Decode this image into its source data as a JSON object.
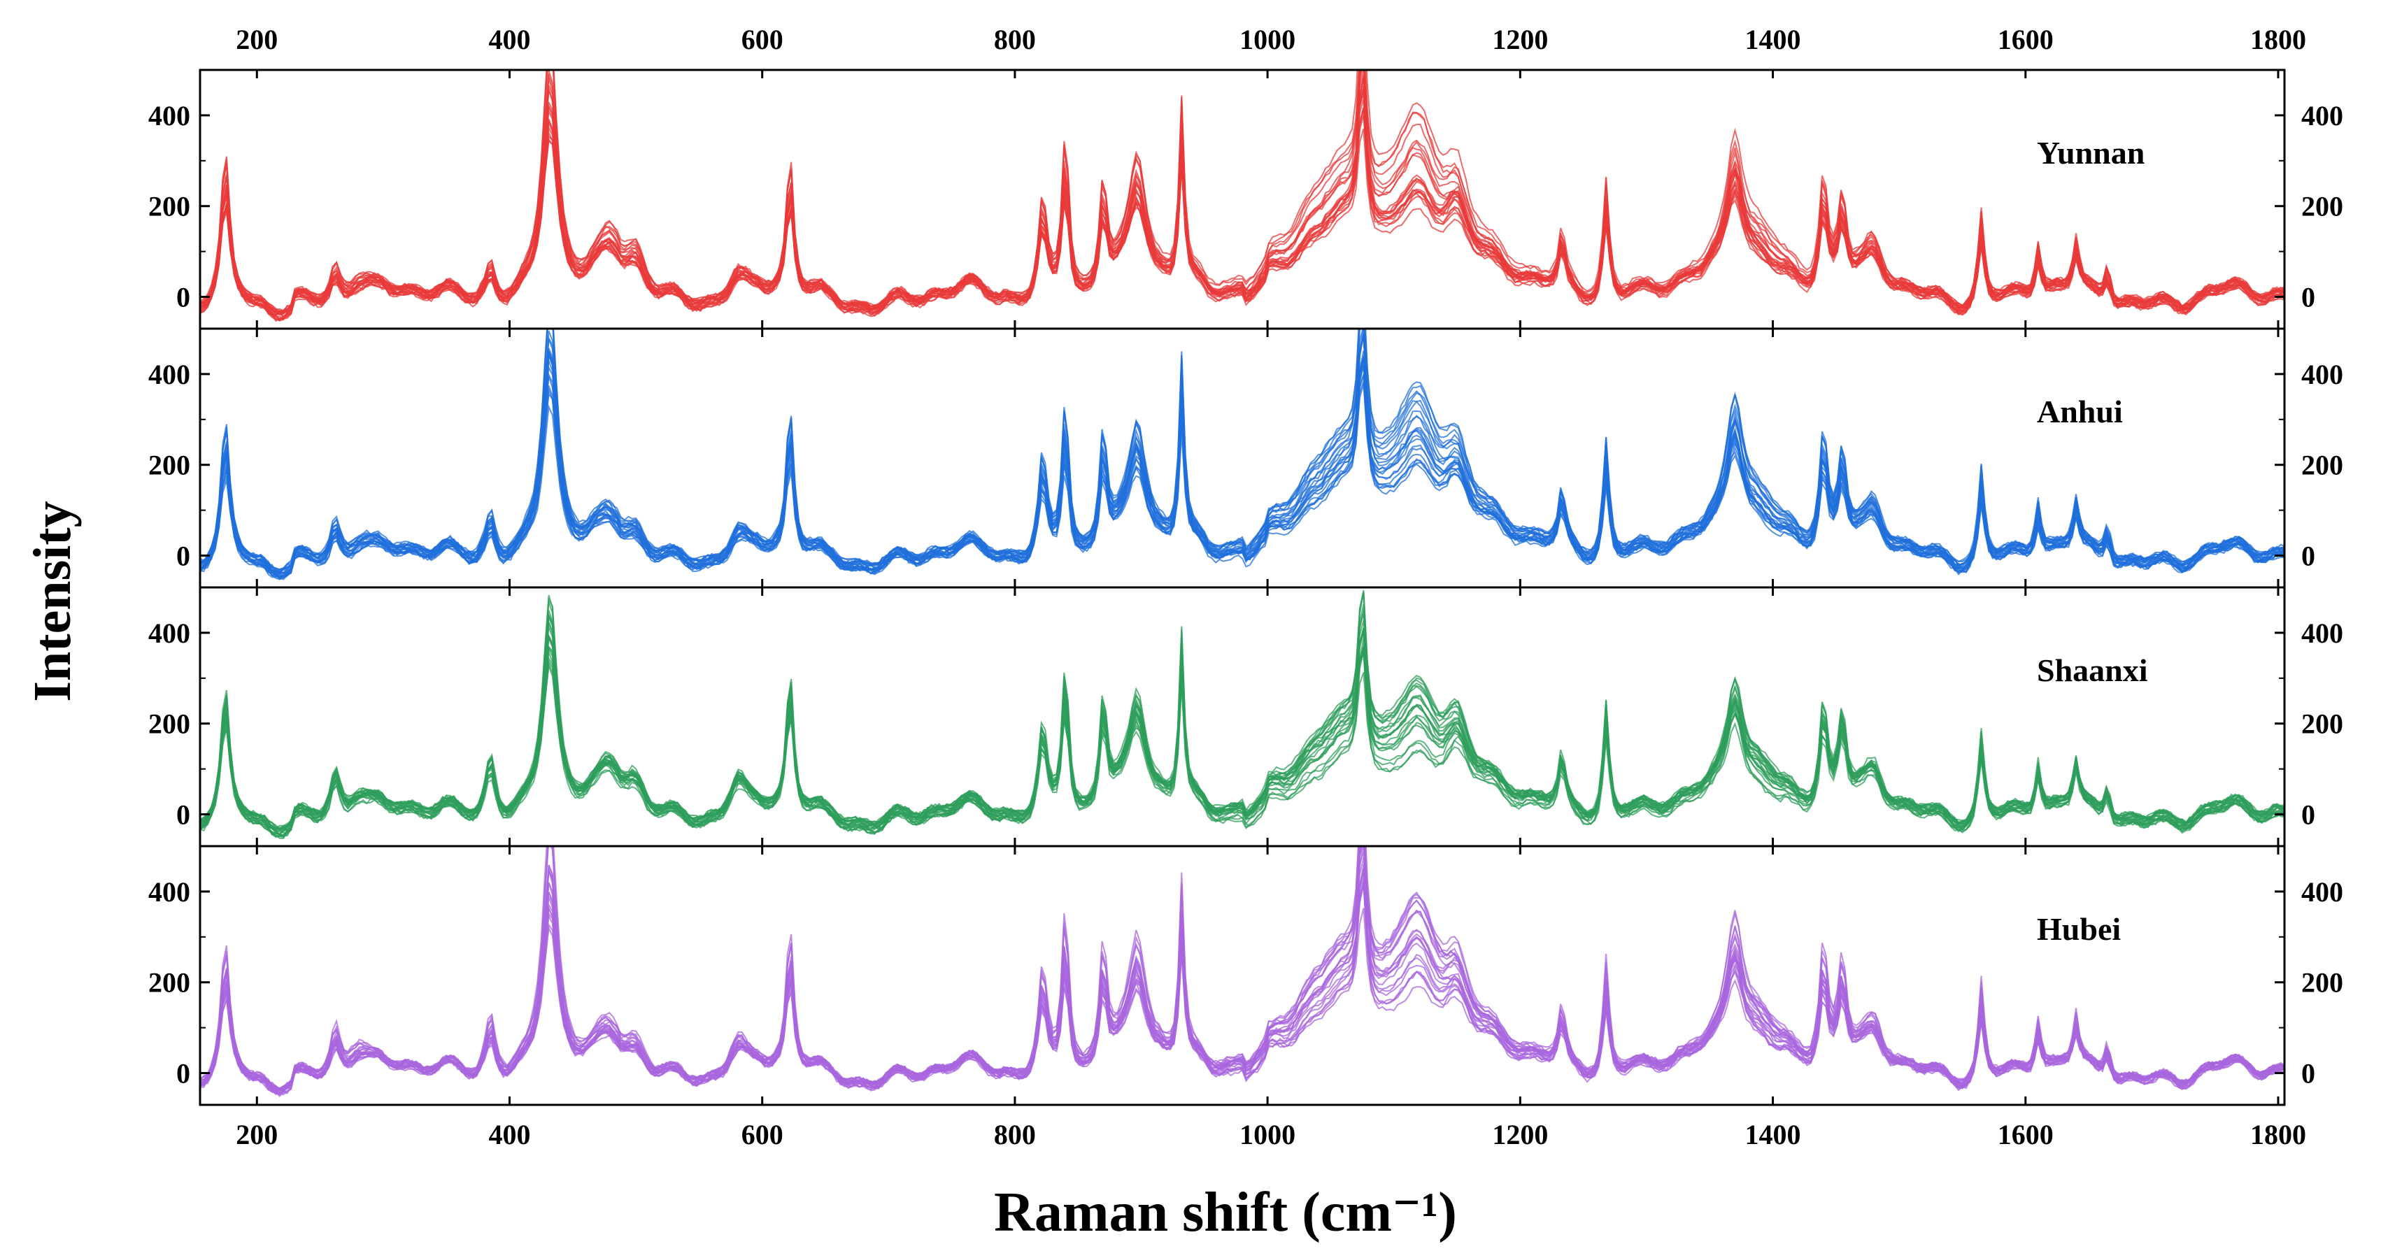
{
  "chart_data": {
    "type": "line",
    "xlabel": "Raman shift (cm⁻¹)",
    "ylabel": "Intensity",
    "xlim": [
      155,
      1805
    ],
    "ylim": [
      -70,
      500
    ],
    "x_ticks": [
      200,
      400,
      600,
      800,
      1000,
      1200,
      1400,
      1600,
      1800
    ],
    "y_ticks": [
      0,
      200,
      400
    ],
    "grid": false,
    "panels": [
      {
        "name": "Yunnan",
        "color": "#e83a3a",
        "peaks": [
          [
            175,
            250,
            4
          ],
          [
            262,
            60,
            5
          ],
          [
            280,
            45,
            10
          ],
          [
            385,
            70,
            5
          ],
          [
            432,
            470,
            7
          ],
          [
            480,
            85,
            12
          ],
          [
            500,
            75,
            10
          ],
          [
            580,
            45,
            8
          ],
          [
            622,
            240,
            3.5
          ],
          [
            822,
            170,
            4
          ],
          [
            840,
            300,
            3.5
          ],
          [
            870,
            195,
            3.5
          ],
          [
            897,
            230,
            9
          ],
          [
            932,
            320,
            2.5
          ],
          [
            1050,
            150,
            40
          ],
          [
            1075,
            350,
            4
          ],
          [
            1118,
            250,
            28
          ],
          [
            1150,
            120,
            12
          ],
          [
            1233,
            90,
            3
          ],
          [
            1268,
            210,
            3
          ],
          [
            1370,
            230,
            8
          ],
          [
            1390,
            110,
            25
          ],
          [
            1440,
            200,
            4
          ],
          [
            1455,
            150,
            4
          ],
          [
            1480,
            80,
            10
          ],
          [
            1565,
            160,
            3
          ],
          [
            1610,
            100,
            3
          ],
          [
            1640,
            90,
            3
          ],
          [
            1665,
            70,
            3
          ]
        ]
      },
      {
        "name": "Anhui",
        "color": "#1f6fdb",
        "peaks": [
          [
            175,
            235,
            4
          ],
          [
            262,
            70,
            5
          ],
          [
            280,
            40,
            10
          ],
          [
            385,
            85,
            5
          ],
          [
            432,
            470,
            7
          ],
          [
            480,
            55,
            12
          ],
          [
            500,
            45,
            10
          ],
          [
            580,
            45,
            8
          ],
          [
            622,
            260,
            3.5
          ],
          [
            822,
            175,
            4
          ],
          [
            840,
            290,
            3.5
          ],
          [
            870,
            215,
            3.5
          ],
          [
            897,
            220,
            9
          ],
          [
            932,
            330,
            2.5
          ],
          [
            1050,
            130,
            40
          ],
          [
            1075,
            330,
            4
          ],
          [
            1118,
            230,
            28
          ],
          [
            1150,
            110,
            12
          ],
          [
            1233,
            95,
            3
          ],
          [
            1268,
            215,
            3
          ],
          [
            1370,
            240,
            8
          ],
          [
            1390,
            100,
            25
          ],
          [
            1440,
            210,
            4
          ],
          [
            1455,
            160,
            4
          ],
          [
            1480,
            75,
            10
          ],
          [
            1565,
            170,
            3
          ],
          [
            1610,
            100,
            3
          ],
          [
            1640,
            90,
            3
          ],
          [
            1665,
            70,
            3
          ]
        ]
      },
      {
        "name": "Shaanxi",
        "color": "#2e9e5b",
        "peaks": [
          [
            175,
            225,
            4
          ],
          [
            262,
            90,
            5
          ],
          [
            280,
            50,
            10
          ],
          [
            385,
            120,
            5
          ],
          [
            432,
            400,
            7
          ],
          [
            480,
            70,
            12
          ],
          [
            500,
            60,
            10
          ],
          [
            580,
            70,
            8
          ],
          [
            622,
            250,
            3.5
          ],
          [
            822,
            160,
            4
          ],
          [
            840,
            280,
            3.5
          ],
          [
            870,
            205,
            3.5
          ],
          [
            897,
            200,
            9
          ],
          [
            932,
            300,
            2.5
          ],
          [
            1050,
            110,
            40
          ],
          [
            1075,
            280,
            4
          ],
          [
            1118,
            180,
            28
          ],
          [
            1150,
            110,
            12
          ],
          [
            1233,
            90,
            3
          ],
          [
            1268,
            210,
            3
          ],
          [
            1370,
            200,
            8
          ],
          [
            1390,
            90,
            25
          ],
          [
            1440,
            190,
            4
          ],
          [
            1455,
            160,
            4
          ],
          [
            1480,
            70,
            10
          ],
          [
            1565,
            160,
            3
          ],
          [
            1610,
            100,
            3
          ],
          [
            1640,
            90,
            3
          ],
          [
            1665,
            70,
            3
          ]
        ]
      },
      {
        "name": "Hubei",
        "color": "#a865de",
        "peaks": [
          [
            175,
            225,
            4
          ],
          [
            262,
            85,
            5
          ],
          [
            280,
            60,
            10
          ],
          [
            385,
            110,
            5
          ],
          [
            432,
            460,
            7
          ],
          [
            480,
            60,
            12
          ],
          [
            500,
            50,
            10
          ],
          [
            580,
            60,
            8
          ],
          [
            622,
            250,
            3.5
          ],
          [
            822,
            180,
            4
          ],
          [
            840,
            300,
            3.5
          ],
          [
            870,
            215,
            3.5
          ],
          [
            897,
            220,
            9
          ],
          [
            932,
            310,
            2.5
          ],
          [
            1050,
            140,
            40
          ],
          [
            1075,
            340,
            4
          ],
          [
            1118,
            240,
            28
          ],
          [
            1150,
            110,
            12
          ],
          [
            1233,
            90,
            3
          ],
          [
            1268,
            200,
            3
          ],
          [
            1370,
            230,
            8
          ],
          [
            1390,
            100,
            25
          ],
          [
            1440,
            210,
            4
          ],
          [
            1455,
            170,
            4
          ],
          [
            1480,
            75,
            10
          ],
          [
            1565,
            170,
            3
          ],
          [
            1610,
            100,
            3
          ],
          [
            1640,
            90,
            3
          ],
          [
            1665,
            70,
            3
          ]
        ]
      }
    ]
  }
}
